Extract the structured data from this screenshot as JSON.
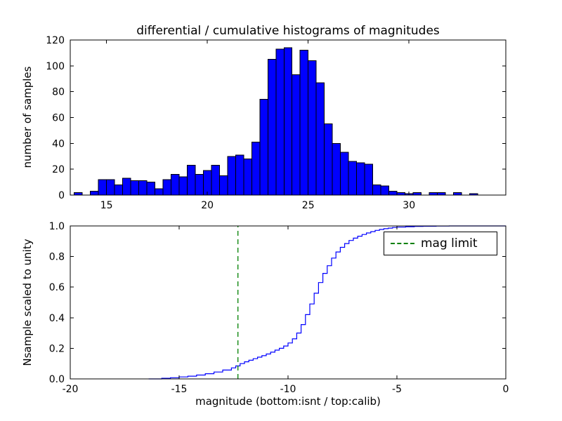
{
  "figure": {
    "background": "#ffffff"
  },
  "chart_data": [
    {
      "type": "bar",
      "subplot": "top",
      "title": "differential / cumulative histograms of magnitudes",
      "ylabel": "number of samples",
      "bar_color": "#0000ff",
      "bar_edge": "#000000",
      "bin_start": 13.4,
      "bin_width": 0.4,
      "counts": [
        2,
        0,
        3,
        12,
        12,
        8,
        13,
        11,
        11,
        10,
        5,
        12,
        16,
        14,
        23,
        16,
        19,
        23,
        15,
        30,
        31,
        28,
        41,
        74,
        105,
        113,
        114,
        93,
        112,
        104,
        87,
        55,
        40,
        33,
        26,
        25,
        24,
        8,
        7,
        3,
        2,
        1,
        2,
        0,
        2,
        2,
        0,
        2,
        0,
        1
      ],
      "xlim": [
        13.2,
        34.8
      ],
      "ylim": [
        0,
        120
      ],
      "xticks": [
        15,
        20,
        25,
        30
      ],
      "xtick_labels": [
        "15",
        "20",
        "25",
        "30"
      ],
      "yticks": [
        0,
        20,
        40,
        60,
        80,
        100,
        120
      ],
      "ytick_labels": [
        "0",
        "20",
        "40",
        "60",
        "80",
        "100",
        "120"
      ]
    },
    {
      "type": "line",
      "subplot": "bottom",
      "style": "step",
      "ylabel": "Nsample scaled to unity",
      "xlabel": "magnitude (bottom:isnt / top:calib)",
      "line_color": "#0000ff",
      "x": [
        -15.8,
        -15.4,
        -15.0,
        -14.6,
        -14.2,
        -13.8,
        -13.4,
        -13.0,
        -12.6,
        -12.4,
        -12.2,
        -12.0,
        -11.8,
        -11.6,
        -11.4,
        -11.2,
        -11.0,
        -10.8,
        -10.6,
        -10.4,
        -10.2,
        -10.0,
        -9.8,
        -9.6,
        -9.4,
        -9.2,
        -9.0,
        -8.8,
        -8.6,
        -8.4,
        -8.2,
        -8.0,
        -7.8,
        -7.6,
        -7.4,
        -7.2,
        -7.0,
        -6.8,
        -6.6,
        -6.4,
        -6.2,
        -6.0,
        -5.8,
        -5.6,
        -5.4,
        -5.2,
        -5.0,
        -4.6,
        -4.2,
        -3.8,
        -3.2,
        -2.6
      ],
      "y": [
        0.004,
        0.008,
        0.013,
        0.018,
        0.025,
        0.034,
        0.045,
        0.058,
        0.072,
        0.085,
        0.1,
        0.112,
        0.122,
        0.132,
        0.142,
        0.152,
        0.163,
        0.175,
        0.188,
        0.2,
        0.215,
        0.235,
        0.262,
        0.3,
        0.355,
        0.42,
        0.49,
        0.56,
        0.63,
        0.69,
        0.74,
        0.79,
        0.83,
        0.86,
        0.885,
        0.905,
        0.92,
        0.933,
        0.944,
        0.954,
        0.963,
        0.971,
        0.977,
        0.982,
        0.986,
        0.99,
        0.992,
        0.995,
        0.997,
        0.998,
        0.999,
        1.0
      ],
      "xlim": [
        -20,
        0
      ],
      "ylim": [
        0,
        1
      ],
      "xticks": [
        -20,
        -15,
        -10,
        -5,
        0
      ],
      "xtick_labels": [
        "-20",
        "-15",
        "-10",
        "-5",
        "0"
      ],
      "yticks": [
        0,
        0.2,
        0.4,
        0.6,
        0.8,
        1.0
      ],
      "ytick_labels": [
        "0.0",
        "0.2",
        "0.4",
        "0.6",
        "0.8",
        "1.0"
      ],
      "vline": {
        "x": -12.3,
        "color": "#008000",
        "style": "dashed",
        "label": "mag limit"
      },
      "legend": {
        "label": "mag limit",
        "position": "upper right"
      }
    }
  ]
}
